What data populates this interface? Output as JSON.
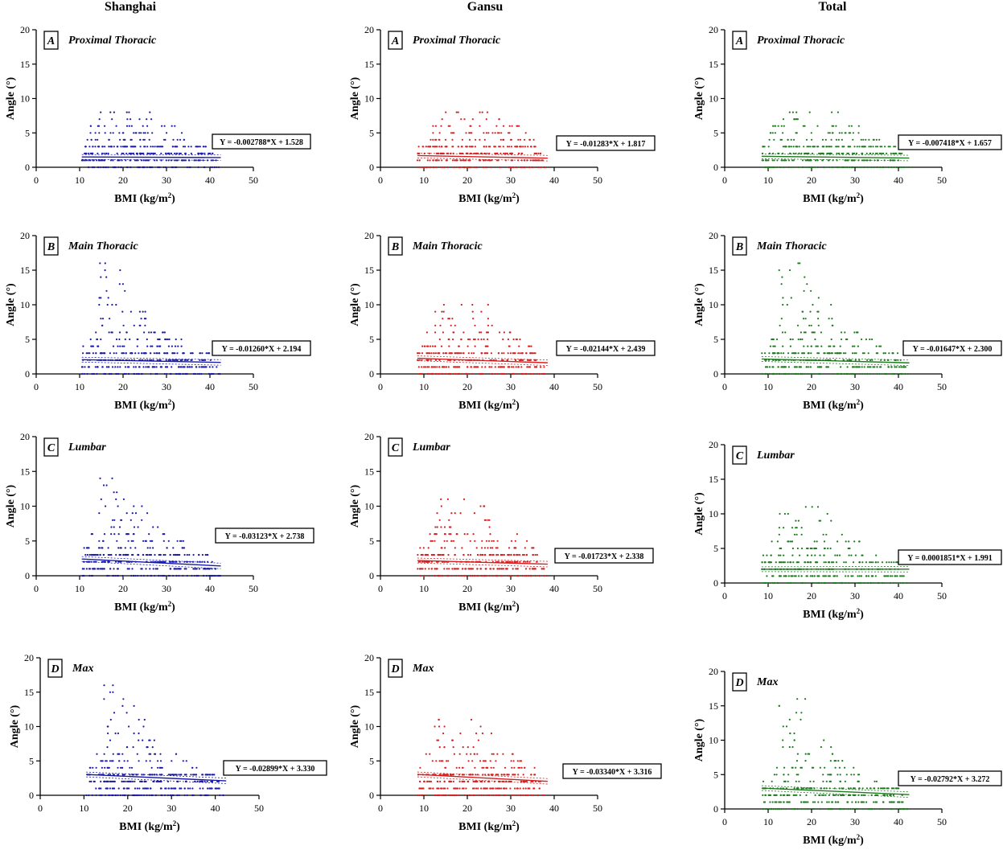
{
  "columns": [
    "Shanghai",
    "Gansu",
    "Total"
  ],
  "regions": {
    "Shanghai": {
      "color": "#1a1aa6",
      "bmi_min": 10.5,
      "bmi_max": 42.5
    },
    "Gansu": {
      "color": "#d42020",
      "bmi_min": 8.5,
      "bmi_max": 38.5
    },
    "Total": {
      "color": "#1f7a1f",
      "bmi_min": 8.5,
      "bmi_max": 42.5
    }
  },
  "chart_data": [
    {
      "type": "scatter",
      "region": "Shanghai",
      "panel": "A",
      "title": "Proximal Thoracic",
      "xlabel": "BMI (kg/m2)",
      "ylabel": "Angle (°)",
      "xlim": [
        0,
        50
      ],
      "ylim": [
        0,
        20
      ],
      "xticks": [
        0,
        10,
        20,
        30,
        40,
        50
      ],
      "yticks": [
        0,
        5,
        10,
        15,
        20
      ],
      "fit": {
        "slope": -0.002788,
        "intercept": 1.528
      },
      "equation": "Y = -0.002788*X + 1.528",
      "max_angle": 8
    },
    {
      "type": "scatter",
      "region": "Gansu",
      "panel": "A",
      "title": "Proximal Thoracic",
      "xlabel": "BMI (kg/m2)",
      "ylabel": "Angle (°)",
      "xlim": [
        0,
        50
      ],
      "ylim": [
        0,
        20
      ],
      "xticks": [
        0,
        10,
        20,
        30,
        40,
        50
      ],
      "yticks": [
        0,
        5,
        10,
        15,
        20
      ],
      "fit": {
        "slope": -0.01283,
        "intercept": 1.817
      },
      "equation": "Y = -0.01283*X + 1.817",
      "max_angle": 8
    },
    {
      "type": "scatter",
      "region": "Total",
      "panel": "A",
      "title": "Proximal Thoracic",
      "xlabel": "BMI (kg/m2)",
      "ylabel": "Angle (°)",
      "xlim": [
        0,
        50
      ],
      "ylim": [
        0,
        20
      ],
      "xticks": [
        0,
        10,
        20,
        30,
        40,
        50
      ],
      "yticks": [
        0,
        5,
        10,
        15,
        20
      ],
      "fit": {
        "slope": -0.007418,
        "intercept": 1.657
      },
      "equation": "Y = -0.007418*X + 1.657",
      "max_angle": 8
    },
    {
      "type": "scatter",
      "region": "Shanghai",
      "panel": "B",
      "title": "Main Thoracic",
      "xlabel": "BMI (kg/m2)",
      "ylabel": "Angle (°)",
      "xlim": [
        0,
        50
      ],
      "ylim": [
        0,
        20
      ],
      "xticks": [
        0,
        10,
        20,
        30,
        40,
        50
      ],
      "yticks": [
        0,
        5,
        10,
        15,
        20
      ],
      "fit": {
        "slope": -0.0126,
        "intercept": 2.194
      },
      "equation": "Y = -0.01260*X + 2.194",
      "max_angle": 16
    },
    {
      "type": "scatter",
      "region": "Gansu",
      "panel": "B",
      "title": "Main Thoracic",
      "xlabel": "BMI (kg/m2)",
      "ylabel": "Angle (°)",
      "xlim": [
        0,
        50
      ],
      "ylim": [
        0,
        20
      ],
      "xticks": [
        0,
        10,
        20,
        30,
        40,
        50
      ],
      "yticks": [
        0,
        5,
        10,
        15,
        20
      ],
      "fit": {
        "slope": -0.02144,
        "intercept": 2.439
      },
      "equation": "Y = -0.02144*X + 2.439",
      "max_angle": 10
    },
    {
      "type": "scatter",
      "region": "Total",
      "panel": "B",
      "title": "Main Thoracic",
      "xlabel": "BMI (kg/m2)",
      "ylabel": "Angle (°)",
      "xlim": [
        0,
        50
      ],
      "ylim": [
        0,
        20
      ],
      "xticks": [
        0,
        10,
        20,
        30,
        40,
        50
      ],
      "yticks": [
        0,
        5,
        10,
        15,
        20
      ],
      "fit": {
        "slope": -0.01647,
        "intercept": 2.3
      },
      "equation": "Y = -0.01647*X + 2.300",
      "max_angle": 16
    },
    {
      "type": "scatter",
      "region": "Shanghai",
      "panel": "C",
      "title": "Lumbar",
      "xlabel": "BMI (kg/m2)",
      "ylabel": "Angle (°)",
      "xlim": [
        0,
        50
      ],
      "ylim": [
        0,
        20
      ],
      "xticks": [
        0,
        10,
        20,
        30,
        40,
        50
      ],
      "yticks": [
        0,
        5,
        10,
        15,
        20
      ],
      "fit": {
        "slope": -0.03123,
        "intercept": 2.738
      },
      "equation": "Y = -0.03123*X + 2.738",
      "max_angle": 14
    },
    {
      "type": "scatter",
      "region": "Gansu",
      "panel": "C",
      "title": "Lumbar",
      "xlabel": "BMI (kg/m2)",
      "ylabel": "Angle (°)",
      "xlim": [
        0,
        50
      ],
      "ylim": [
        0,
        20
      ],
      "xticks": [
        0,
        10,
        20,
        30,
        40,
        50
      ],
      "yticks": [
        0,
        5,
        10,
        15,
        20
      ],
      "fit": {
        "slope": -0.01723,
        "intercept": 2.338
      },
      "equation": "Y = -0.01723*X + 2.338",
      "max_angle": 11
    },
    {
      "type": "scatter",
      "region": "Total",
      "panel": "C",
      "title": "Lumbar",
      "xlabel": "BMI (kg/m2)",
      "ylabel": "Angle (°)",
      "xlim": [
        0,
        50
      ],
      "ylim": [
        0,
        20
      ],
      "xticks": [
        0,
        10,
        20,
        30,
        40,
        50
      ],
      "yticks": [
        0,
        5,
        10,
        15,
        20
      ],
      "fit": {
        "slope": 0.0001851,
        "intercept": 1.991
      },
      "equation": "Y = 0.0001851*X + 1.991",
      "max_angle": 11
    },
    {
      "type": "scatter",
      "region": "Shanghai",
      "panel": "D",
      "title": "Max",
      "xlabel": "BMI (kg/m2)",
      "ylabel": "Angle (°)",
      "xlim": [
        0,
        50
      ],
      "ylim": [
        0,
        20
      ],
      "xticks": [
        0,
        10,
        20,
        30,
        40,
        50
      ],
      "yticks": [
        0,
        5,
        10,
        15,
        20
      ],
      "fit": {
        "slope": -0.02899,
        "intercept": 3.33
      },
      "equation": "Y = -0.02899*X + 3.330",
      "max_angle": 16
    },
    {
      "type": "scatter",
      "region": "Gansu",
      "panel": "D",
      "title": "Max",
      "xlabel": "BMI (kg/m2)",
      "ylabel": "Angle (°)",
      "xlim": [
        0,
        50
      ],
      "ylim": [
        0,
        20
      ],
      "xticks": [
        0,
        10,
        20,
        30,
        40,
        50
      ],
      "yticks": [
        0,
        5,
        10,
        15,
        20
      ],
      "fit": {
        "slope": -0.0334,
        "intercept": 3.316
      },
      "equation": "Y = -0.03340*X + 3.316",
      "max_angle": 11
    },
    {
      "type": "scatter",
      "region": "Total",
      "panel": "D",
      "title": "Max",
      "xlabel": "BMI (kg/m2)",
      "ylabel": "Angle (°)",
      "xlim": [
        0,
        50
      ],
      "ylim": [
        0,
        20
      ],
      "xticks": [
        0,
        10,
        20,
        30,
        40,
        50
      ],
      "yticks": [
        0,
        5,
        10,
        15,
        20
      ],
      "fit": {
        "slope": -0.02792,
        "intercept": 3.272
      },
      "equation": "Y = -0.02792*X + 3.272",
      "max_angle": 16
    }
  ]
}
